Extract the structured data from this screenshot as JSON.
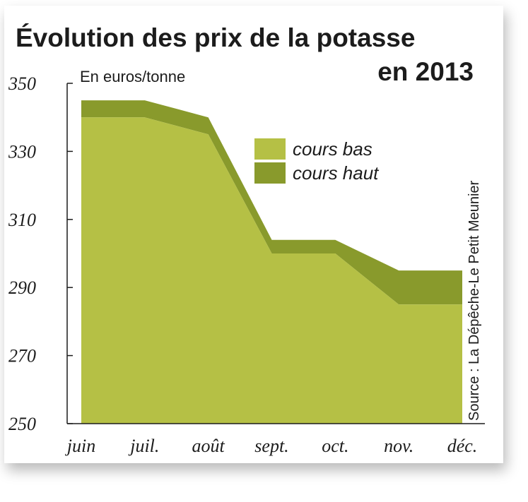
{
  "chart_data": {
    "type": "area",
    "title_line1": "Évolution des prix de la potasse",
    "title_line2": "en 2013",
    "unit_label": "En euros/tonne",
    "source": "Source : La Dépêche-Le Petit Meunier",
    "categories": [
      "juin",
      "juil.",
      "août",
      "sept.",
      "oct.",
      "nov.",
      "déc."
    ],
    "y_ticks": [
      "350",
      "330",
      "310",
      "290",
      "270",
      "250"
    ],
    "ylim": [
      250,
      350
    ],
    "series": [
      {
        "name": "cours bas",
        "color": "#b5c045",
        "values": [
          340,
          340,
          335,
          300,
          300,
          285,
          285
        ]
      },
      {
        "name": "cours haut",
        "color": "#899a2c",
        "values": [
          345,
          345,
          340,
          304,
          304,
          295,
          295
        ]
      }
    ],
    "legend_position": "top-right"
  }
}
